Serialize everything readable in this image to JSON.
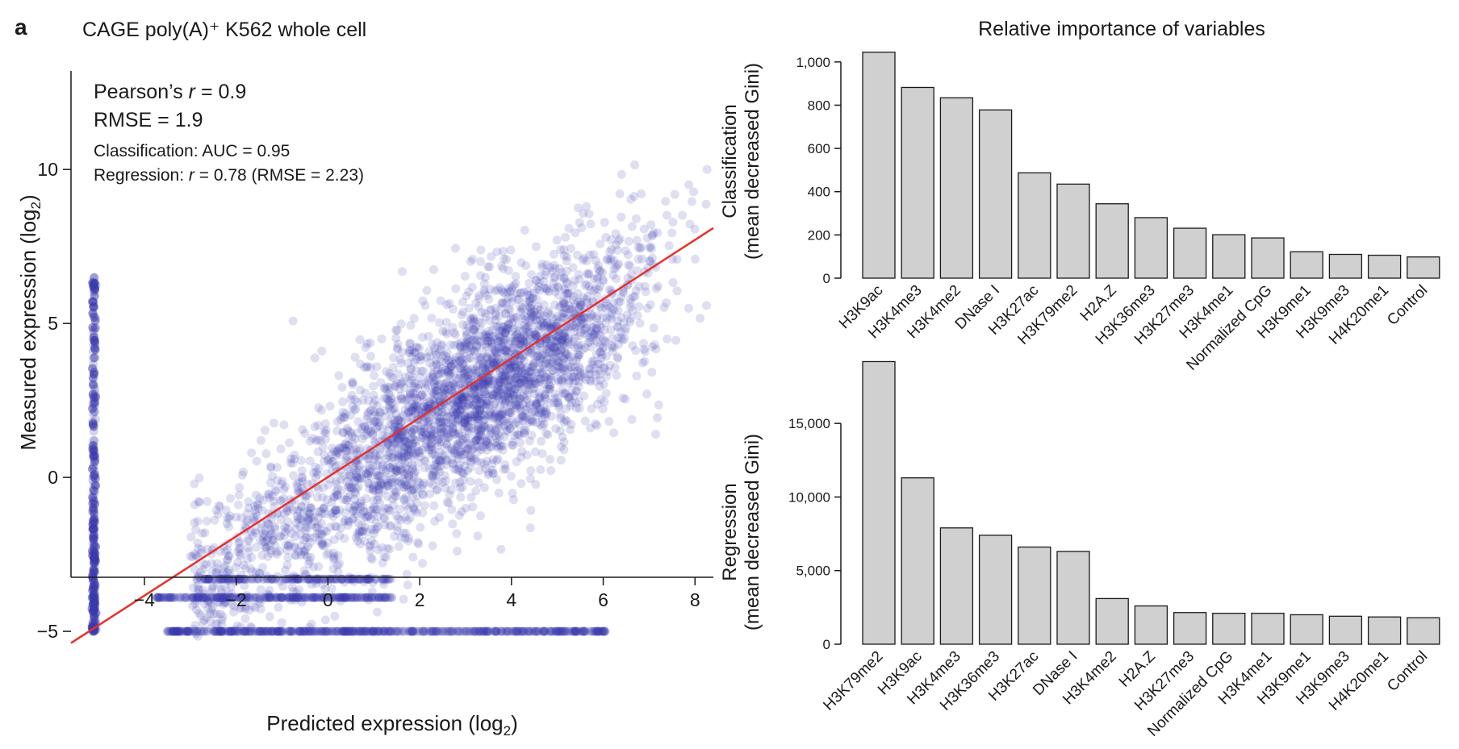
{
  "panel_label": "a",
  "chart_data": [
    {
      "type": "scatter",
      "title": "CAGE poly(A)⁺ K562 whole cell",
      "xlabel": "Predicted expression (log",
      "xlabel_sub": "2",
      "xlabel_end": ")",
      "ylabel": "Measured expression (log",
      "ylabel_sub": "2",
      "ylabel_end": ")",
      "xlim": [
        -5.6,
        8.4
      ],
      "ylim": [
        -5.6,
        13.2
      ],
      "xticks": [
        -4,
        -2,
        0,
        2,
        4,
        6,
        8
      ],
      "yticks": [
        -5,
        0,
        5,
        10
      ],
      "grid": false,
      "point_color": "#3a3aae",
      "line_color": "#e8302a",
      "fit_line": {
        "x": [
          -5.6,
          8.4
        ],
        "y": [
          -5.38,
          8.1
        ]
      },
      "annotations": {
        "pearson_prefix": "Pearson’s ",
        "pearson_var": "r",
        "pearson_value": " = 0.9",
        "rmse": "RMSE = 1.9",
        "classification": "Classification: AUC = 0.95",
        "regression_prefix": "Regression: ",
        "regression_var": "r",
        "regression_value": " = 0.78 (RMSE = 2.23)"
      },
      "density_description": {
        "main_cloud_center": [
          3.5,
          3.0
        ],
        "vertical_band_x": -5.1,
        "horizontal_bands_y": [
          -5.0,
          -3.9,
          -3.3
        ]
      }
    },
    {
      "type": "bar",
      "title": "Relative importance of variables",
      "ylabel_line1": "Classification",
      "ylabel_line2": "(mean decreased Gini)",
      "ylim": [
        0,
        1100
      ],
      "yticks": [
        0,
        200,
        400,
        600,
        800,
        1000
      ],
      "ytick_labels": [
        "0",
        "200",
        "400",
        "600",
        "800",
        "1,000"
      ],
      "bar_color": "#d0d0d0",
      "categories": [
        "H3K9ac",
        "H3K4me3",
        "H3K4me2",
        "DNase I",
        "H3K27ac",
        "H3K79me2",
        "H2A.Z",
        "H3K36me3",
        "H3K27me3",
        "H3K4me1",
        "Normalized CpG",
        "H3K9me1",
        "H3K9me3",
        "H4K20me1",
        "Control"
      ],
      "values": [
        1045,
        882,
        834,
        778,
        487,
        435,
        344,
        280,
        231,
        201,
        186,
        122,
        110,
        106,
        98
      ]
    },
    {
      "type": "bar",
      "ylabel_line1": "Regression",
      "ylabel_line2": "(mean decreased Gini)",
      "ylim": [
        0,
        19500
      ],
      "yticks": [
        0,
        5000,
        10000,
        15000
      ],
      "ytick_labels": [
        "0",
        "5,000",
        "10,000",
        "15,000"
      ],
      "bar_color": "#d0d0d0",
      "categories": [
        "H3K79me2",
        "H3K9ac",
        "H3K4me3",
        "H3K36me3",
        "H3K27ac",
        "DNase I",
        "H3K4me2",
        "H2A.Z",
        "H3K27me3",
        "Normalized CpG",
        "H3K4me1",
        "H3K9me1",
        "H3K9me3",
        "H4K20me1",
        "Control"
      ],
      "values": [
        19200,
        11300,
        7900,
        7400,
        6600,
        6300,
        3100,
        2600,
        2150,
        2100,
        2100,
        2000,
        1900,
        1850,
        1800
      ]
    }
  ]
}
